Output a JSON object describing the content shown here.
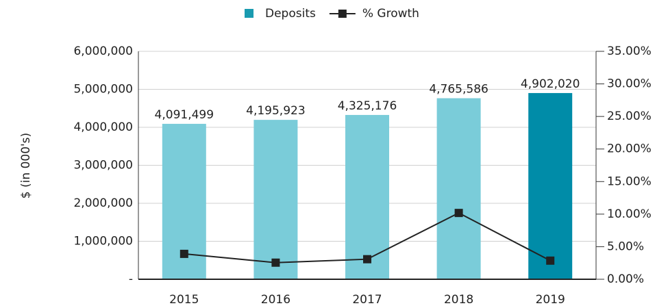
{
  "chart_data": {
    "type": "bar-line",
    "categories": [
      "2015",
      "2016",
      "2017",
      "2018",
      "2019"
    ],
    "y_label": "$ (in 000's)",
    "series": [
      {
        "name": "Deposits",
        "type": "bar",
        "color": "#1a9bb0",
        "colors": [
          "#7accd9",
          "#7accd9",
          "#7accd9",
          "#7accd9",
          "#008ca8"
        ],
        "values": [
          4091499,
          4195923,
          4325176,
          4765586,
          4902020
        ],
        "value_labels": [
          "4,091,499",
          "4,195,923",
          "4,325,176",
          "4,765,586",
          "4,902,020"
        ]
      },
      {
        "name": "% Growth",
        "type": "line",
        "axis": "y2",
        "color": "#222222",
        "values": [
          3.9,
          2.55,
          3.08,
          10.18,
          2.86
        ]
      }
    ],
    "ylim": [
      0,
      6000000
    ],
    "yticks": [
      {
        "value": 0,
        "label": "-"
      },
      {
        "value": 1000000,
        "label": "1,000,000"
      },
      {
        "value": 2000000,
        "label": "2,000,000"
      },
      {
        "value": 3000000,
        "label": "3,000,000"
      },
      {
        "value": 4000000,
        "label": "4,000,000"
      },
      {
        "value": 5000000,
        "label": "5,000,000"
      },
      {
        "value": 6000000,
        "label": "6,000,000"
      }
    ],
    "y2lim": [
      0,
      35
    ],
    "y2ticks": [
      {
        "value": 0,
        "label": "0.00%"
      },
      {
        "value": 5,
        "label": "5.00%"
      },
      {
        "value": 10,
        "label": "10.00%"
      },
      {
        "value": 15,
        "label": "15.00%"
      },
      {
        "value": 20,
        "label": "20.00%"
      },
      {
        "value": 25,
        "label": "25.00%"
      },
      {
        "value": 30,
        "label": "30.00%"
      },
      {
        "value": 35,
        "label": "35.00%"
      }
    ],
    "grid": true,
    "legend": "top"
  }
}
